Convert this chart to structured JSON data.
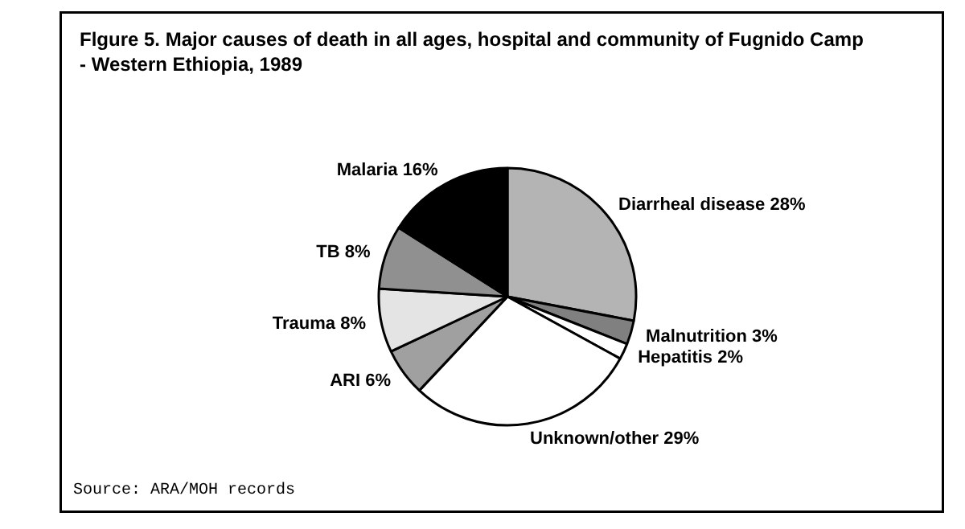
{
  "chart_data": {
    "type": "pie",
    "title": "Flgure 5. Major causes of death in all ages, hospital and community of Fugnido Camp\n- Western Ethiopia, 1989",
    "categories": [
      "Diarrheal disease",
      "Malnutrition",
      "Hepatitis",
      "Unknown/other",
      "ARI",
      "Trauma",
      "TB",
      "Malaria"
    ],
    "values": [
      28,
      3,
      2,
      29,
      6,
      8,
      8,
      16
    ],
    "value_labels": [
      "28%",
      "3%",
      "2%",
      "29%",
      "6%",
      "8%",
      "8%",
      "16%"
    ],
    "colors": [
      "#b4b4b4",
      "#808080",
      "#ffffff",
      "#ffffff",
      "#a0a0a0",
      "#e4e4e4",
      "#909090",
      "#000000"
    ],
    "annotations": [
      "Source:  ARA/MOH records"
    ]
  }
}
